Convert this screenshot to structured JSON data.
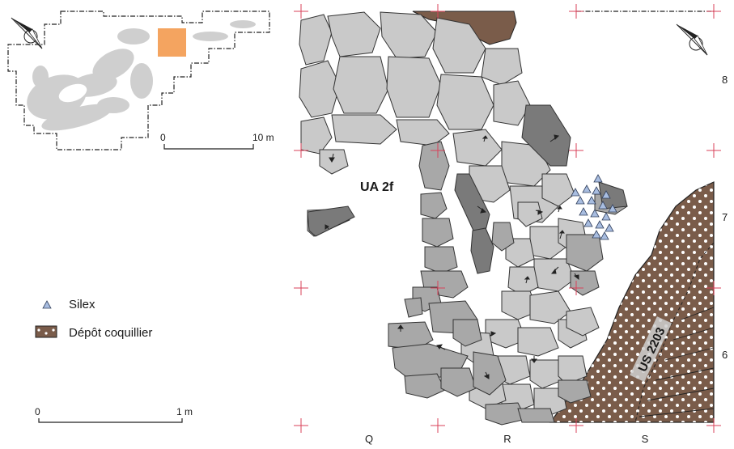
{
  "inset": {
    "scale_start": "0",
    "scale_end": "10 m"
  },
  "main": {
    "ua_label": "UA 2f",
    "us_label": "US 2203",
    "grid_columns": [
      "Q",
      "R",
      "S"
    ],
    "grid_rows": [
      "8",
      "7",
      "6"
    ]
  },
  "legend": {
    "silex": "Silex",
    "depot": "Dépôt coquillier"
  },
  "scale_bar": {
    "start": "0",
    "end": "1 m"
  },
  "colors": {
    "block_light": "#c9c9c9",
    "block_medium": "#a8a8a8",
    "block_dark": "#7a7a7a",
    "deposit": "#7a5c4a",
    "silex": "#a8bde0",
    "cross": "#d9425a",
    "highlight": "#f4a460"
  }
}
